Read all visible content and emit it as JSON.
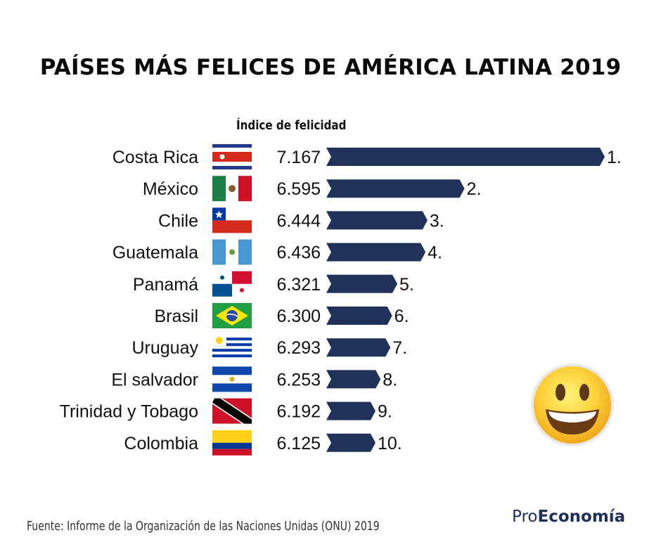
{
  "title": "PAÍSES MÁS FELICES DE AMÉRICA LATINA 2019",
  "column_header": "Índice de felicidad",
  "source": "Fuente: Informe de la Organización de las Naciones Unidas (ONU) 2019",
  "brand": {
    "prefix": "Pro",
    "bold": "Economía"
  },
  "colors": {
    "bar": "#203259",
    "text": "#111111",
    "brand": "#1e2f59"
  },
  "chart_data": {
    "type": "bar",
    "orientation": "horizontal",
    "categories": [
      "Costa Rica",
      "México",
      "Chile",
      "Guatemala",
      "Panamá",
      "Brasil",
      "Uruguay",
      "El salvador",
      "Trinidad y Tobago",
      "Colombia"
    ],
    "values": [
      7.167,
      6.595,
      6.444,
      6.436,
      6.321,
      6.3,
      6.293,
      6.253,
      6.192,
      6.125
    ],
    "value_labels": [
      "7.167",
      "6.595",
      "6.444",
      "6.436",
      "6.321",
      "6.300",
      "6.293",
      "6.253",
      "6.192",
      "6.125"
    ],
    "rank_labels": [
      "1.",
      "2.",
      "3.",
      "4.",
      "5.",
      "6.",
      "7.",
      "8.",
      "9.",
      "10."
    ],
    "flags": [
      "costa-rica",
      "mexico",
      "chile",
      "guatemala",
      "panama",
      "brazil",
      "uruguay",
      "el-salvador",
      "trinidad-and-tobago",
      "colombia"
    ],
    "xlabel": "",
    "ylabel": "",
    "grid": false,
    "legend": "none"
  }
}
